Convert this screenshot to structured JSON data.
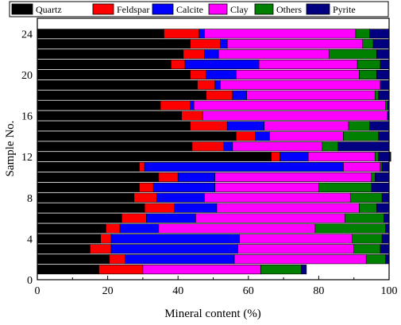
{
  "chart_data": {
    "type": "bar",
    "orientation": "horizontal",
    "stacked": true,
    "xlabel": "Mineral content (%)",
    "ylabel": "Sample No.",
    "xlim": [
      0,
      100
    ],
    "ylim": [
      0,
      24
    ],
    "xticks": [
      "0",
      "20",
      "40",
      "60",
      "80",
      "100"
    ],
    "yticks": [
      "0",
      "4",
      "8",
      "12",
      "16",
      "20",
      "24"
    ],
    "grid": false,
    "legend_position": "top",
    "categories": [
      1,
      2,
      3,
      4,
      5,
      6,
      7,
      8,
      9,
      10,
      11,
      12,
      13,
      14,
      15,
      16,
      17,
      18,
      19,
      20,
      21,
      22,
      23,
      24
    ],
    "series": [
      {
        "name": "Quartz",
        "color": "#000000",
        "values": [
          17.5,
          20.5,
          15,
          18,
          19.5,
          24,
          30.5,
          27.5,
          29,
          34.5,
          29,
          66.5,
          44,
          56.5,
          43.5,
          41,
          35,
          48,
          45.5,
          43.5,
          38,
          41.5,
          43.5,
          36
        ]
      },
      {
        "name": "Feldspar",
        "color": "#ff0000",
        "values": [
          12.5,
          4.5,
          6,
          3,
          4,
          7,
          8.5,
          6.5,
          4,
          5.5,
          1.5,
          2.5,
          9,
          5.5,
          10.5,
          6,
          8.5,
          7.5,
          5,
          4.5,
          4,
          6,
          8.5,
          10
        ]
      },
      {
        "name": "Calcite",
        "color": "#0000ff",
        "values": [
          0,
          31,
          36,
          36.5,
          11,
          14,
          12,
          13.5,
          17.5,
          10.5,
          56.5,
          8,
          2.5,
          4,
          10.5,
          0,
          1,
          4,
          1.5,
          8.5,
          21,
          4,
          2,
          1.5
        ]
      },
      {
        "name": "Clay",
        "color": "#ff00ff",
        "values": [
          33.5,
          37.5,
          33,
          32,
          44.5,
          42.5,
          40.5,
          41.5,
          29.5,
          44.5,
          10.5,
          19,
          25.5,
          21,
          24,
          52.5,
          54.5,
          36.5,
          45.5,
          35,
          28,
          31.5,
          38.5,
          43
        ]
      },
      {
        "name": "Others",
        "color": "#008000",
        "values": [
          11.5,
          5.5,
          7.5,
          8.5,
          20,
          11,
          5,
          9,
          15,
          1,
          0.5,
          1,
          4.5,
          10,
          6,
          0,
          0.5,
          1,
          0,
          5,
          6.5,
          13.5,
          3,
          4
        ]
      },
      {
        "name": "Pyrite",
        "color": "#000080",
        "values": [
          1.5,
          1,
          2.5,
          2,
          1,
          1.5,
          3.5,
          2,
          5,
          4,
          2,
          3.5,
          14.5,
          3,
          5.5,
          0.5,
          0.5,
          3,
          2.5,
          3.5,
          2.5,
          3.5,
          4.5,
          5.5
        ]
      }
    ]
  }
}
